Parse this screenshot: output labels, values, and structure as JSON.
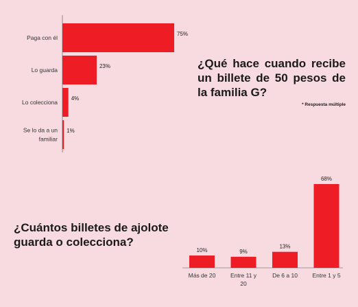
{
  "chart_data": [
    {
      "type": "bar",
      "orientation": "horizontal",
      "title": "¿Qué hace cuando recibe un billete de 50 pesos de la familia G?",
      "note": "* Respuesta múltiple",
      "categories": [
        [
          "Paga con él"
        ],
        [
          "Lo guarda"
        ],
        [
          "Lo colecciona"
        ],
        [
          "Se lo da a un",
          "familiar"
        ]
      ],
      "values": [
        75,
        23,
        4,
        1
      ],
      "value_labels": [
        "75%",
        "23%",
        "4%",
        "1%"
      ],
      "xlim": [
        0,
        75
      ],
      "grid": false,
      "bar_color": "#ee1c25"
    },
    {
      "type": "bar",
      "orientation": "vertical",
      "title": "¿Cuántos billetes de ajolote guarda o colecciona?",
      "categories": [
        [
          "Más de 20"
        ],
        [
          "Entre 11 y",
          "20"
        ],
        [
          "De 6 a 10"
        ],
        [
          "Entre 1 y 5"
        ]
      ],
      "values": [
        10,
        9,
        13,
        68
      ],
      "value_labels": [
        "10%",
        "9%",
        "13%",
        "68%"
      ],
      "ylim": [
        0,
        68
      ],
      "grid": false,
      "bar_color": "#ee1c25"
    }
  ]
}
